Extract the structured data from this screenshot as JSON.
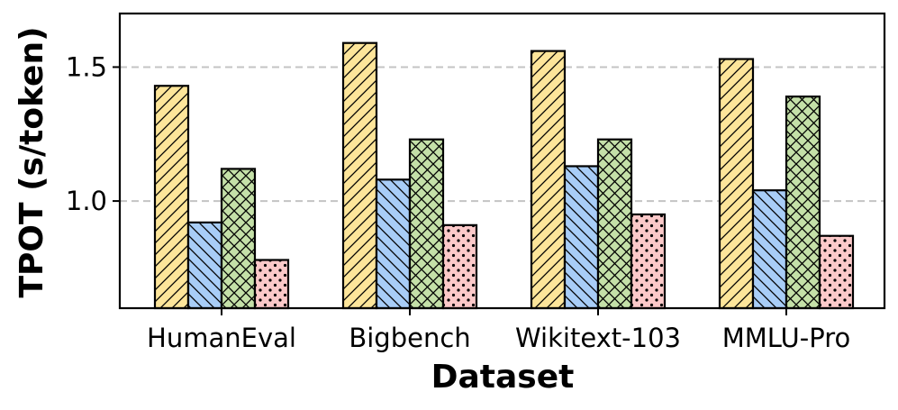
{
  "chart_data": {
    "type": "bar",
    "title": "",
    "xlabel": "Dataset",
    "ylabel": "TPOT (s/token)",
    "categories": [
      "HumanEval",
      "Bigbench",
      "Wikitext-103",
      "MMLU-Pro"
    ],
    "ylim": [
      0.6,
      1.7
    ],
    "yticks": [
      1.0,
      1.5
    ],
    "ytick_labels": [
      "1.0",
      "1.5"
    ],
    "grid": "horizontal dashed",
    "legend": "none",
    "series": [
      {
        "values": [
          1.43,
          1.59,
          1.56,
          1.53
        ],
        "color": "#fde59a",
        "hatch": "forward-diagonal"
      },
      {
        "values": [
          0.92,
          1.08,
          1.13,
          1.04
        ],
        "color": "#a8cdf7",
        "hatch": "back-diagonal"
      },
      {
        "values": [
          1.12,
          1.23,
          1.23,
          1.39
        ],
        "color": "#c4e0a8",
        "hatch": "crosshatch"
      },
      {
        "values": [
          0.78,
          0.91,
          0.95,
          0.87
        ],
        "color": "#fbc9c9",
        "hatch": "dots"
      }
    ]
  }
}
